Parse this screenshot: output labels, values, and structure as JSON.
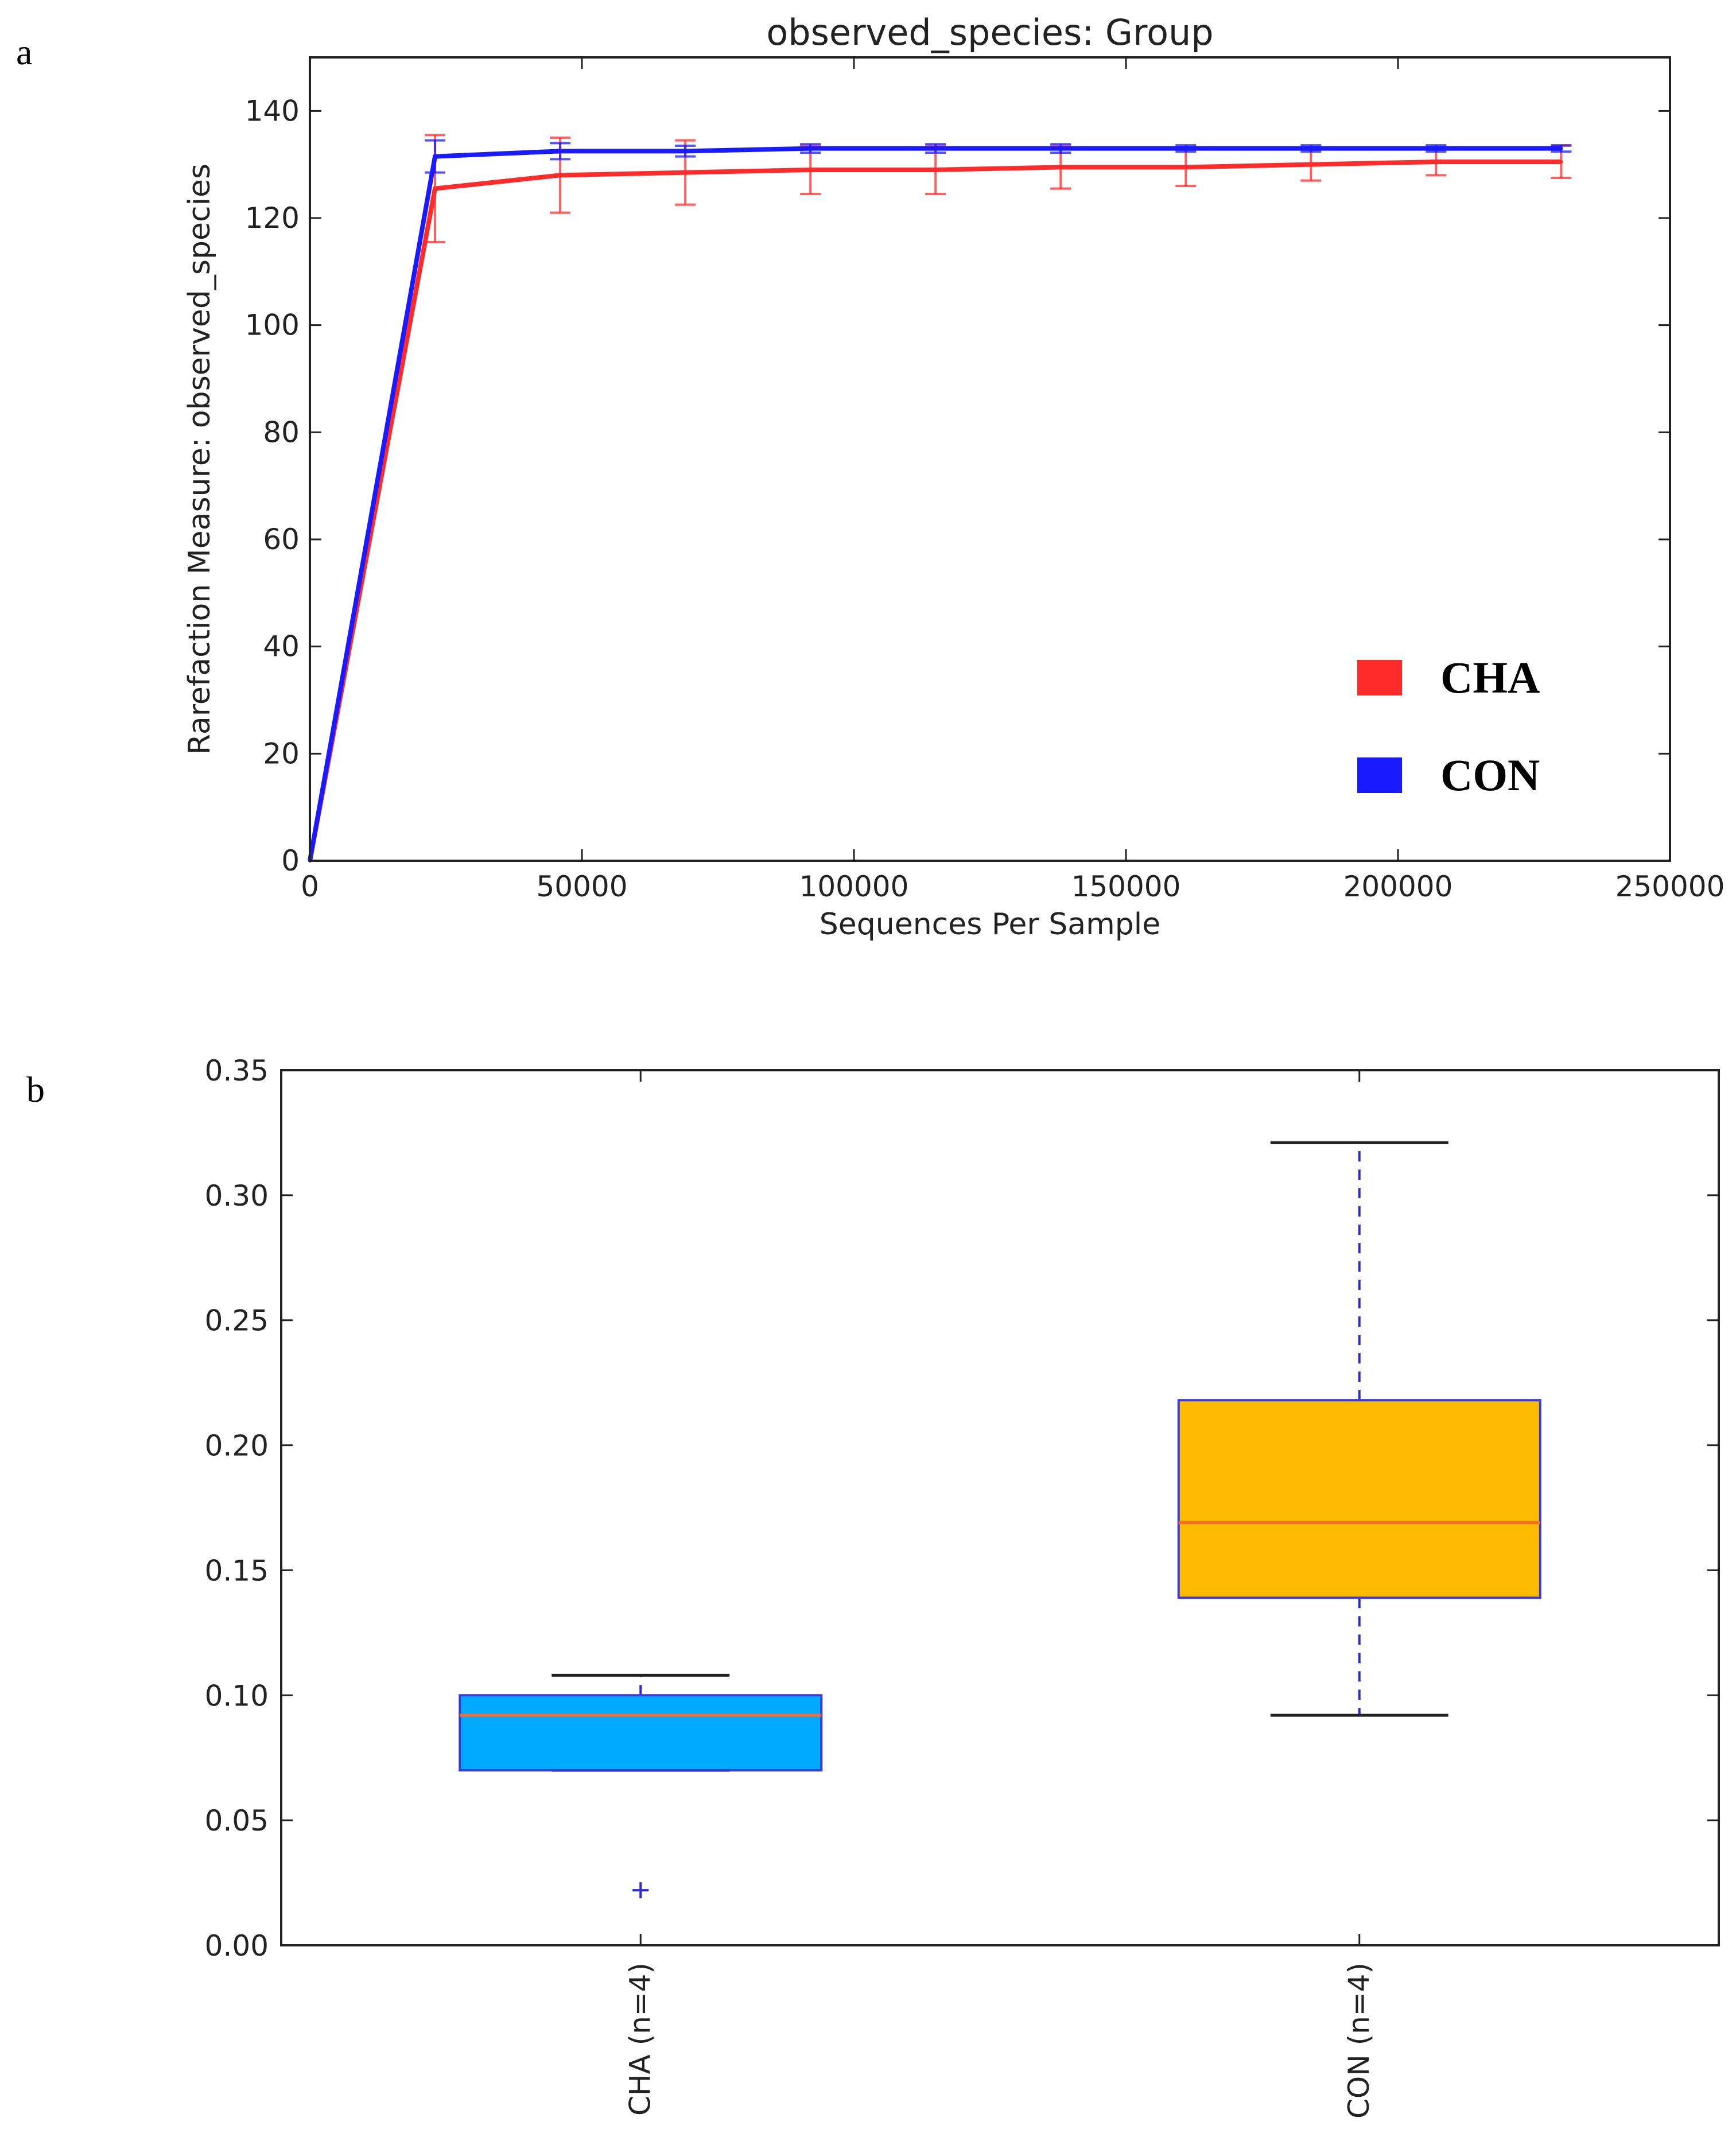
{
  "panels": {
    "a_label": "a",
    "b_label": "b"
  },
  "colors": {
    "cha": "#ff2a2a",
    "con": "#1a1aff",
    "box_cha": "#00aaff",
    "box_con": "#ffbb00",
    "median": "#ff6a2a",
    "whisker": "#2a2ad0"
  },
  "chart_data": [
    {
      "type": "line",
      "title": "observed_species: Group",
      "xlabel": "Sequences Per Sample",
      "ylabel": "Rarefaction Measure: observed_species",
      "xlim": [
        0,
        250000
      ],
      "ylim": [
        0,
        150
      ],
      "xticks": [
        0,
        50000,
        100000,
        150000,
        200000,
        250000
      ],
      "xtick_labels": [
        "0",
        "50000",
        "100000",
        "150000",
        "200000",
        "250000"
      ],
      "yticks": [
        0,
        20,
        40,
        60,
        80,
        100,
        120,
        140
      ],
      "ytick_labels": [
        "0",
        "20",
        "40",
        "60",
        "80",
        "100",
        "120",
        "140"
      ],
      "x": [
        0,
        23000,
        46000,
        69000,
        92000,
        115000,
        138000,
        161000,
        184000,
        207000,
        230000
      ],
      "series": [
        {
          "name": "CHA",
          "color": "#ff2a2a",
          "values": [
            0,
            125.5,
            128,
            128.5,
            129,
            129,
            129.5,
            129.5,
            130,
            130.5,
            130.5
          ],
          "errors": [
            0,
            10,
            7,
            6,
            4.5,
            4.5,
            4,
            3.5,
            3,
            2.5,
            3
          ]
        },
        {
          "name": "CON",
          "color": "#1a1aff",
          "values": [
            0,
            131.5,
            132.5,
            132.5,
            133,
            133,
            133,
            133,
            133,
            133,
            133
          ],
          "errors": [
            0,
            3,
            1.5,
            1,
            0.8,
            0.8,
            0.8,
            0.6,
            0.6,
            0.6,
            0.6
          ]
        }
      ],
      "legend": [
        {
          "label": "CHA",
          "color": "#ff2a2a"
        },
        {
          "label": "CON",
          "color": "#1a1aff"
        }
      ],
      "legend_position": "right"
    },
    {
      "type": "box",
      "ylim": [
        0,
        0.35
      ],
      "yticks": [
        0,
        0.05,
        0.1,
        0.15,
        0.2,
        0.25,
        0.3,
        0.35
      ],
      "ytick_labels": [
        "0.00",
        "0.05",
        "0.10",
        "0.15",
        "0.20",
        "0.25",
        "0.30",
        "0.35"
      ],
      "categories": [
        "CHA (n=4)",
        "CON (n=4)"
      ],
      "boxes": [
        {
          "name": "CHA (n=4)",
          "whisker_low": 0.07,
          "q1": 0.07,
          "median": 0.092,
          "q3": 0.1,
          "whisker_high": 0.108,
          "outliers": [
            0.022
          ],
          "color": "#00aaff"
        },
        {
          "name": "CON (n=4)",
          "whisker_low": 0.092,
          "q1": 0.139,
          "median": 0.169,
          "q3": 0.218,
          "whisker_high": 0.321,
          "outliers": [],
          "color": "#ffbb00"
        }
      ]
    }
  ]
}
